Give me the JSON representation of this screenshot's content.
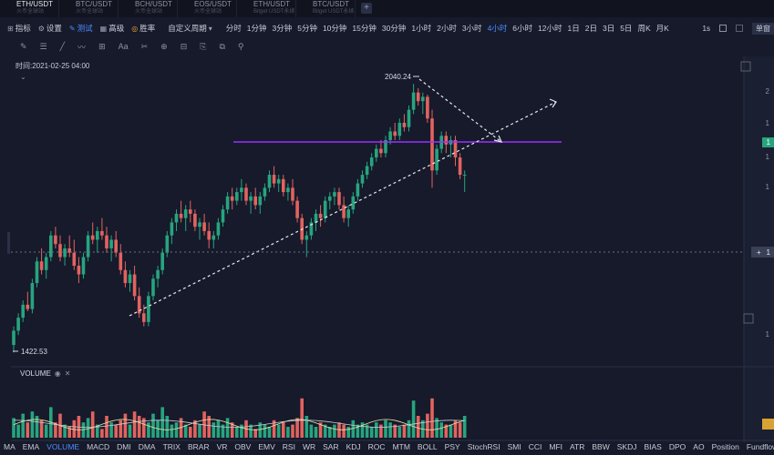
{
  "tabs": [
    {
      "pair": "ETH/USDT",
      "sub": "火币全球站"
    },
    {
      "pair": "BTC/USDT",
      "sub": "火币全球站"
    },
    {
      "pair": "BCH/USDT",
      "sub": "火币全球站"
    },
    {
      "pair": "EOS/USDT",
      "sub": "火币全球站"
    },
    {
      "pair": "ETH/USDT",
      "sub": "Bitget USDT永续"
    },
    {
      "pair": "BTC/USDT",
      "sub": "Bitget USDT永续"
    }
  ],
  "toolbar": {
    "indicator": "指标",
    "settings": "设置",
    "backtest": "测试",
    "advanced": "高级",
    "winrate": "胜率",
    "custom_period": "自定义周期",
    "periods": [
      "分时",
      "1分钟",
      "3分钟",
      "5分钟",
      "10分钟",
      "15分钟",
      "30分钟",
      "1小时",
      "2小时",
      "3小时",
      "4小时",
      "6小时",
      "12小时",
      "1日",
      "2日",
      "3日",
      "5日",
      "周K",
      "月K"
    ],
    "selected_period": "4小时",
    "one_s": "1s",
    "single_chart": "单窗"
  },
  "drawtools": [
    "✎",
    "☰",
    "╱",
    "〰",
    "⊞",
    "Aa",
    "✂",
    "⊕",
    "⊟",
    "⎘",
    "⧉",
    "⚲"
  ],
  "chart": {
    "time_label": "时间:2021-02-25 04:00",
    "high_label": "2040.24",
    "low_label": "1422.53",
    "right_axis": [
      "2",
      "1",
      "1",
      "1",
      "1"
    ],
    "price_tag_green": "1",
    "price_tag_cross": "1",
    "volume_label": "VOLUME"
  },
  "colors": {
    "up": "#27a47f",
    "down": "#e2635f",
    "purple": "#9b30ff",
    "accent": "#4e8dff"
  },
  "bottom_indicators": [
    "MA",
    "EMA",
    "VOLUME",
    "MACD",
    "DMI",
    "DMA",
    "TRIX",
    "BRAR",
    "VR",
    "OBV",
    "EMV",
    "RSI",
    "WR",
    "SAR",
    "KDJ",
    "ROC",
    "MTM",
    "BOLL",
    "PSY",
    "StochRSI",
    "SMI",
    "CCI",
    "MFI",
    "ATR",
    "BBW",
    "SKDJ",
    "BIAS",
    "DPO",
    "AO",
    "Position",
    "Fundflow"
  ],
  "selected_indicator": "VOLUME"
}
